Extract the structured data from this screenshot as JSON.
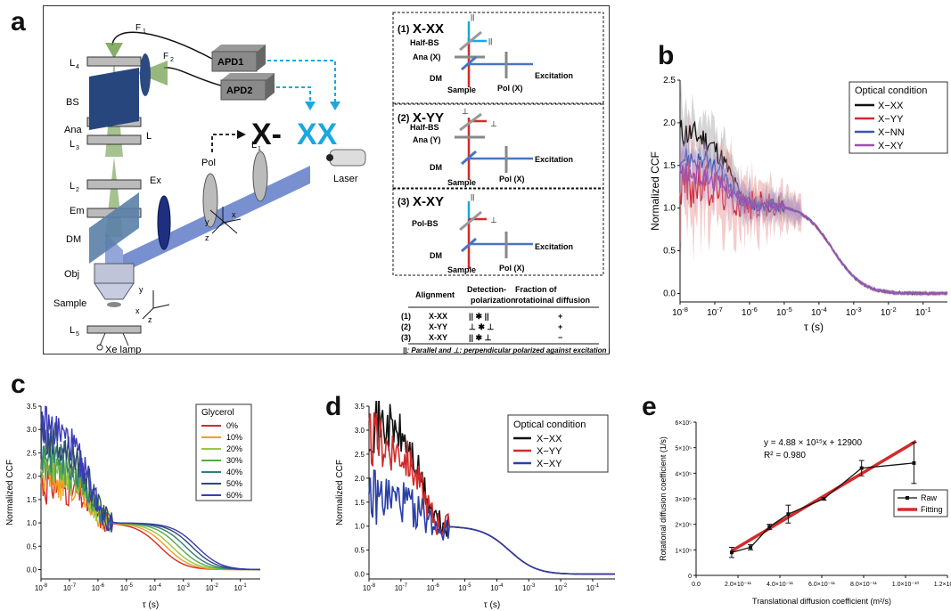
{
  "panels": {
    "a": "a",
    "b": "b",
    "c": "c",
    "d": "d",
    "e": "e"
  },
  "panel_a": {
    "labels": {
      "F1": "F",
      "F1_sub": "1",
      "F2": "F",
      "F2_sub": "2",
      "L4": "L",
      "L4_sub": "4",
      "L3": "L",
      "L3_sub": "3",
      "L2": "L",
      "L2_sub": "2",
      "L1": "L",
      "L1_sub": "1",
      "L5": "L",
      "L5_sub": "5",
      "L": "L",
      "BS": "BS",
      "Ana": "Ana",
      "Em": "Em",
      "DM": "DM",
      "Ex": "Ex",
      "Pol": "Pol",
      "Obj": "Obj",
      "Sample": "Sample",
      "Xe": "Xe lamp",
      "Laser": "Laser",
      "APD1": "APD1",
      "APD2": "APD2",
      "big_X": "X-",
      "big_XX": "XX",
      "ax_x": "x",
      "ax_y": "y",
      "ax_z": "z"
    },
    "configs": [
      {
        "num": "(1)",
        "name": "X-XX",
        "half": "Half-BS",
        "ana": "Ana (X)",
        "dm": "DM",
        "sample": "Sample",
        "pol": "Pol (X)",
        "exc": "Excitation",
        "sym_par": "||",
        "sym_perp": "||"
      },
      {
        "num": "(2)",
        "name": "X-YY",
        "half": "Half-BS",
        "ana": "Ana (Y)",
        "dm": "DM",
        "sample": "Sample",
        "pol": "Pol (X)",
        "exc": "Excitation",
        "sym_par": "⊥",
        "sym_perp": "⊥"
      },
      {
        "num": "(3)",
        "name": "X-XY",
        "half": "Pol-BS",
        "ana": "",
        "dm": "DM",
        "sample": "Sample",
        "pol": "Pol (X)",
        "exc": "Excitation",
        "sym_par": "||",
        "sym_perp": "⊥"
      }
    ],
    "table": {
      "headers": [
        "Alignment",
        "Detection-\npolarization",
        "Fraction of\nrotatioinal diffusion"
      ],
      "rows": [
        {
          "num": "(1)",
          "align": "X-XX",
          "det": "|| ✱ ||",
          "frac": "+"
        },
        {
          "num": "(2)",
          "align": "X-YY",
          "det": "⊥ ✱ ⊥",
          "frac": "+"
        },
        {
          "num": "(3)",
          "align": "X-XY",
          "det": "|| ✱ ⊥",
          "frac": "−"
        }
      ],
      "note": "||: Parallel and ⊥: perpendicular polarized against excitation laser"
    }
  },
  "chart_data": [
    {
      "id": "b",
      "type": "line",
      "xlabel": "τ (s)",
      "ylabel": "Normalized CCF",
      "xscale": "log",
      "xlim": [
        1e-08,
        0.5
      ],
      "ylim": [
        -0.1,
        2.5
      ],
      "yticks": [
        "0.0",
        "0.5",
        "1.0",
        "1.5",
        "2.0",
        "2.5"
      ],
      "xticks": [
        "10^-8",
        "10^-7",
        "10^-6",
        "10^-5",
        "10^-4",
        "10^-3",
        "10^-2",
        "10^-1"
      ],
      "legend": {
        "title": "Optical condition",
        "placement": "top-right"
      },
      "series": [
        {
          "name": "X−XX",
          "color": "#111111",
          "shade": "#888888",
          "amp": 1.9,
          "noise": 0.25,
          "spread": 0.35
        },
        {
          "name": "X−YY",
          "color": "#d42a2a",
          "shade": "#e07070",
          "amp": 1.3,
          "noise": 0.45,
          "spread": 0.55
        },
        {
          "name": "X−NN",
          "color": "#3a56b0",
          "shade": "#7a8fd0",
          "amp": 1.6,
          "noise": 0.2,
          "spread": 0.2
        },
        {
          "name": "X−XY",
          "color": "#9b4fb0",
          "shade": "#c79ad5",
          "amp": 1.4,
          "noise": 0.2,
          "spread": 0.3
        }
      ],
      "decay": {
        "tau": 0.00025,
        "baseline": 1.0,
        "plateau": 1.05
      }
    },
    {
      "id": "c",
      "type": "line",
      "xlabel": "τ (s)",
      "ylabel": "Normalized CCF",
      "xscale": "log",
      "xlim": [
        1e-08,
        0.5
      ],
      "ylim": [
        -0.2,
        3.5
      ],
      "yticks": [
        "0.0",
        "0.5",
        "1.0",
        "1.5",
        "2.0",
        "2.5",
        "3.0",
        "3.5"
      ],
      "xticks": [
        "10^-8",
        "10^-7",
        "10^-6",
        "10^-5",
        "10^-4",
        "10^-3",
        "10^-2",
        "10^-1"
      ],
      "legend": {
        "title": "Glycerol",
        "placement": "top-right"
      },
      "series": [
        {
          "name": "0%",
          "color": "#d42a2a",
          "amp": 1.9,
          "tau": 0.00015
        },
        {
          "name": "10%",
          "color": "#f0a020",
          "amp": 2.0,
          "tau": 0.00025
        },
        {
          "name": "20%",
          "color": "#9ac640",
          "amp": 2.2,
          "tau": 0.0004
        },
        {
          "name": "30%",
          "color": "#58a848",
          "amp": 2.4,
          "tau": 0.0007
        },
        {
          "name": "40%",
          "color": "#30807a",
          "amp": 2.6,
          "tau": 0.0012
        },
        {
          "name": "50%",
          "color": "#2e4a6e",
          "amp": 2.9,
          "tau": 0.002
        },
        {
          "name": "60%",
          "color": "#3a3ab8",
          "amp": 3.1,
          "tau": 0.003
        }
      ]
    },
    {
      "id": "d",
      "type": "line",
      "xlabel": "τ (s)",
      "ylabel": "Normalized CCF",
      "xscale": "log",
      "xlim": [
        1e-08,
        0.5
      ],
      "ylim": [
        -0.1,
        3.5
      ],
      "yticks": [
        "0.0",
        "0.5",
        "1.0",
        "1.5",
        "2.0",
        "2.5",
        "3.0",
        "3.5"
      ],
      "xticks": [
        "10^-8",
        "10^-7",
        "10^-6",
        "10^-5",
        "10^-4",
        "10^-3",
        "10^-2",
        "10^-1"
      ],
      "legend": {
        "title": "Optical condition",
        "placement": "top-right"
      },
      "series": [
        {
          "name": "X−XX",
          "color": "#111111",
          "amp": 3.2
        },
        {
          "name": "X−YY",
          "color": "#d42a2a",
          "amp": 2.8
        },
        {
          "name": "X−XY",
          "color": "#2a40a8",
          "amp": 1.6
        }
      ]
    },
    {
      "id": "e",
      "type": "scatter",
      "xlabel": "Translational diffusion coefficient (m²/s)",
      "ylabel": "Rotational diffusion coefficient (1/s)",
      "xlim": [
        0,
        1.2e-10
      ],
      "ylim": [
        0,
        600000
      ],
      "xticks": [
        "0.0",
        "2.0×10⁻¹¹",
        "4.0×10⁻¹¹",
        "6.0×10⁻¹¹",
        "8.0×10⁻¹¹",
        "1.0×10⁻¹⁰",
        "1.2×10⁻¹⁰"
      ],
      "yticks": [
        "0",
        "1×10⁵",
        "2×10⁵",
        "3×10⁵",
        "4×10⁵",
        "5×10⁵",
        "6×10⁵"
      ],
      "equation": "y = 4.88 × 10¹⁵x + 12900",
      "r2": "R² = 0.980",
      "legend": {
        "raw": "Raw",
        "fit": "Fitting",
        "placement": "center-right"
      },
      "raw": {
        "x": [
          1.7e-11,
          2.6e-11,
          3.5e-11,
          4.4e-11,
          6.1e-11,
          7.9e-11,
          1.04e-10
        ],
        "y": [
          90000,
          110000,
          190000,
          240000,
          300000,
          420000,
          440000
        ],
        "err": [
          20000,
          10000,
          10000,
          35000,
          5000,
          30000,
          80000
        ]
      },
      "fit": {
        "slope": 4880000000000000.0,
        "intercept": 12900,
        "x": [
          1.7e-11,
          1.05e-10
        ]
      },
      "colors": {
        "raw": "#111111",
        "fit": "#d42a2a"
      }
    }
  ]
}
